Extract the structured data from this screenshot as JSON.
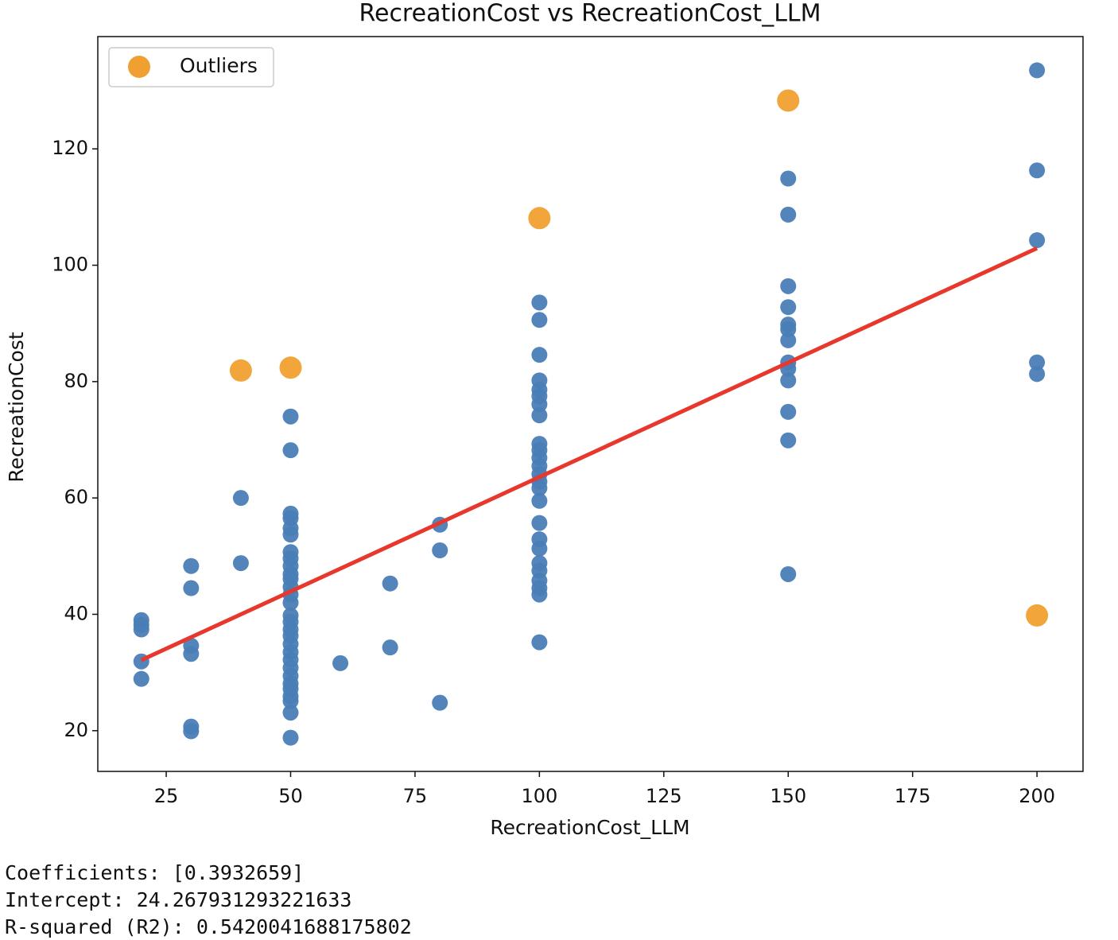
{
  "chart_data": {
    "type": "scatter",
    "title": "RecreationCost vs RecreationCost_LLM",
    "x_label": "RecreationCost_LLM",
    "y_label": "RecreationCost",
    "xlim": [
      11.25,
      209.25
    ],
    "ylim": [
      13.0,
      139.3
    ],
    "xticks": [
      25,
      50,
      75,
      100,
      125,
      150,
      175,
      200
    ],
    "yticks": [
      20,
      40,
      60,
      80,
      100,
      120
    ],
    "legend": "upper left",
    "series": [
      {
        "color": "#4a7db6",
        "x": [
          20,
          20,
          20,
          20,
          20,
          30,
          30,
          30,
          30,
          30,
          30,
          40,
          40,
          50,
          50,
          50,
          50,
          50,
          50,
          50,
          50,
          50,
          50,
          50,
          50,
          50,
          50,
          50,
          50,
          50,
          50,
          50,
          50,
          50,
          50,
          50,
          50,
          50,
          50,
          50,
          50,
          50,
          60,
          70,
          70,
          80,
          80,
          80,
          100,
          100,
          100,
          100,
          100,
          100,
          100,
          100,
          100,
          100,
          100,
          100,
          100,
          100,
          100,
          100,
          100,
          100,
          100,
          100,
          100,
          100,
          100,
          100,
          100,
          150,
          150,
          150,
          150,
          150,
          150,
          150,
          150,
          150,
          150,
          150,
          150,
          150,
          200,
          200,
          200,
          200,
          200
        ],
        "values": [
          39.0,
          38.2,
          37.4,
          31.9,
          28.9,
          48.3,
          44.5,
          34.6,
          33.2,
          20.7,
          19.9,
          60.0,
          48.8,
          74.0,
          68.2,
          57.3,
          56.5,
          54.8,
          53.7,
          50.7,
          49.6,
          48.3,
          46.9,
          46.1,
          44.7,
          43.4,
          42.0,
          39.8,
          38.7,
          37.4,
          36.3,
          34.9,
          33.5,
          32.2,
          30.8,
          29.4,
          28.1,
          27.2,
          25.9,
          25.1,
          23.1,
          18.8,
          31.6,
          45.3,
          34.3,
          55.4,
          51.0,
          24.8,
          93.6,
          90.6,
          84.6,
          80.2,
          78.6,
          77.5,
          76.1,
          74.2,
          69.3,
          68.2,
          66.9,
          65.5,
          64.1,
          62.8,
          61.7,
          59.5,
          55.7,
          52.9,
          51.3,
          48.8,
          47.5,
          45.8,
          44.5,
          43.4,
          35.2,
          114.9,
          108.7,
          96.4,
          92.8,
          89.8,
          89.0,
          87.1,
          83.3,
          82.2,
          80.2,
          74.8,
          69.9,
          46.9,
          133.5,
          116.3,
          104.3,
          83.3,
          81.3
        ]
      },
      {
        "name": "Outliers",
        "color": "#f0a030",
        "x": [
          40,
          50,
          100,
          150,
          200
        ],
        "values": [
          81.9,
          82.4,
          108.1,
          128.3,
          39.8
        ]
      },
      {
        "type": "line",
        "color": "#e8372c",
        "x": [
          20,
          200
        ],
        "values": [
          32.13,
          102.92
        ]
      }
    ]
  },
  "output": [
    "Coefficients: [0.3932659]",
    "Intercept: 24.267931293221633",
    "R-squared (R2): 0.5420041688175802"
  ]
}
